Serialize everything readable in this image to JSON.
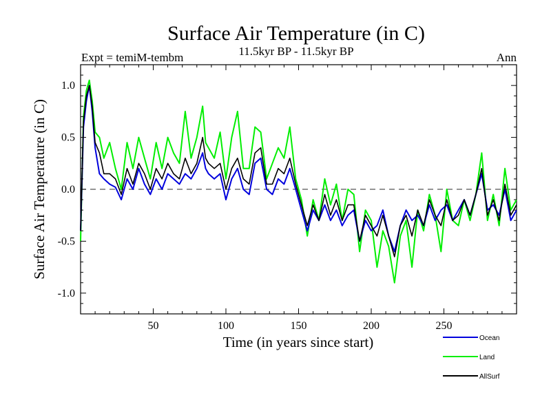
{
  "chart_data": {
    "type": "line",
    "title": "Surface Air Temperature (in C)",
    "subtitle": "11.5kyr BP - 11.5kyr BP",
    "expt_label": "Expt = temiM-tembm",
    "season_label": "Ann",
    "xlabel": "Time (in years since start)",
    "ylabel": "Surface Air Temperature (in C)",
    "xlim": [
      0,
      300
    ],
    "ylim": [
      -1.2,
      1.2
    ],
    "x_ticks": [
      50,
      100,
      150,
      200,
      250
    ],
    "y_ticks": [
      -1.0,
      -0.5,
      0.0,
      0.5,
      1.0
    ],
    "y_tick_labels": [
      "-1.0",
      "-0.5",
      "0.0",
      "0.5",
      "1.0"
    ],
    "x_tick_labels": [
      "50",
      "100",
      "150",
      "200",
      "250"
    ],
    "zero_line": true,
    "legend_placement": "bottom-right",
    "series": [
      {
        "name": "Ocean",
        "color": "#0000dd",
        "x": [
          0,
          2,
          4,
          6,
          8,
          10,
          13,
          16,
          20,
          24,
          28,
          32,
          36,
          40,
          44,
          48,
          52,
          56,
          60,
          64,
          68,
          72,
          76,
          80,
          84,
          86,
          88,
          92,
          96,
          100,
          104,
          108,
          112,
          116,
          120,
          124,
          128,
          132,
          136,
          140,
          144,
          148,
          152,
          156,
          160,
          164,
          168,
          172,
          176,
          180,
          184,
          188,
          192,
          196,
          200,
          204,
          208,
          212,
          216,
          220,
          224,
          228,
          232,
          236,
          240,
          244,
          248,
          252,
          256,
          260,
          264,
          268,
          272,
          276,
          280,
          284,
          288,
          292,
          296,
          300
        ],
        "values": [
          -0.4,
          0.6,
          0.85,
          1.0,
          0.75,
          0.4,
          0.15,
          0.1,
          0.05,
          0.02,
          -0.1,
          0.1,
          0.0,
          0.2,
          0.05,
          -0.05,
          0.1,
          0.0,
          0.15,
          0.1,
          0.05,
          0.15,
          0.1,
          0.2,
          0.35,
          0.2,
          0.15,
          0.1,
          0.15,
          -0.1,
          0.1,
          0.2,
          0.0,
          -0.05,
          0.25,
          0.3,
          0.0,
          -0.05,
          0.1,
          0.05,
          0.2,
          0.0,
          -0.2,
          -0.4,
          -0.2,
          -0.3,
          -0.15,
          -0.3,
          -0.2,
          -0.35,
          -0.25,
          -0.2,
          -0.5,
          -0.3,
          -0.4,
          -0.35,
          -0.2,
          -0.45,
          -0.6,
          -0.35,
          -0.2,
          -0.3,
          -0.25,
          -0.35,
          -0.15,
          -0.3,
          -0.2,
          -0.15,
          -0.3,
          -0.2,
          -0.1,
          -0.25,
          -0.05,
          0.15,
          -0.2,
          -0.15,
          -0.25,
          0.0,
          -0.3,
          -0.2
        ]
      },
      {
        "name": "Land",
        "color": "#00ee00",
        "x": [
          0,
          2,
          4,
          6,
          8,
          10,
          13,
          16,
          20,
          24,
          28,
          32,
          36,
          40,
          44,
          48,
          52,
          56,
          60,
          64,
          68,
          72,
          76,
          80,
          84,
          86,
          88,
          92,
          96,
          100,
          104,
          108,
          112,
          116,
          120,
          124,
          128,
          132,
          136,
          140,
          144,
          148,
          152,
          156,
          160,
          164,
          168,
          172,
          176,
          180,
          184,
          188,
          192,
          196,
          200,
          204,
          208,
          212,
          216,
          220,
          224,
          228,
          232,
          236,
          240,
          244,
          248,
          252,
          256,
          260,
          264,
          268,
          272,
          276,
          280,
          284,
          288,
          292,
          296,
          300
        ],
        "values": [
          -0.5,
          0.7,
          0.95,
          1.05,
          0.85,
          0.55,
          0.5,
          0.3,
          0.45,
          0.2,
          0.0,
          0.45,
          0.2,
          0.5,
          0.3,
          0.1,
          0.45,
          0.2,
          0.5,
          0.35,
          0.25,
          0.75,
          0.3,
          0.5,
          0.8,
          0.45,
          0.4,
          0.3,
          0.55,
          0.1,
          0.5,
          0.75,
          0.2,
          0.2,
          0.6,
          0.55,
          0.1,
          0.25,
          0.4,
          0.3,
          0.6,
          0.1,
          -0.1,
          -0.45,
          -0.1,
          -0.3,
          0.1,
          -0.15,
          0.05,
          -0.3,
          0.0,
          -0.05,
          -0.6,
          -0.2,
          -0.3,
          -0.75,
          -0.4,
          -0.55,
          -0.9,
          -0.45,
          -0.3,
          -0.75,
          -0.2,
          -0.4,
          -0.05,
          -0.25,
          -0.6,
          0.0,
          -0.3,
          -0.35,
          -0.1,
          -0.3,
          -0.05,
          0.35,
          -0.3,
          -0.05,
          -0.35,
          0.2,
          -0.2,
          -0.1
        ]
      },
      {
        "name": "AllSurf",
        "color": "#000000",
        "x": [
          0,
          2,
          4,
          6,
          8,
          10,
          13,
          16,
          20,
          24,
          28,
          32,
          36,
          40,
          44,
          48,
          52,
          56,
          60,
          64,
          68,
          72,
          76,
          80,
          84,
          86,
          88,
          92,
          96,
          100,
          104,
          108,
          112,
          116,
          120,
          124,
          128,
          132,
          136,
          140,
          144,
          148,
          152,
          156,
          160,
          164,
          168,
          172,
          176,
          180,
          184,
          188,
          192,
          196,
          200,
          204,
          208,
          212,
          216,
          220,
          224,
          228,
          232,
          236,
          240,
          244,
          248,
          252,
          256,
          260,
          264,
          268,
          272,
          276,
          280,
          284,
          288,
          292,
          296,
          300
        ],
        "values": [
          -0.4,
          0.65,
          0.9,
          1.0,
          0.8,
          0.45,
          0.35,
          0.15,
          0.15,
          0.1,
          -0.05,
          0.2,
          0.05,
          0.25,
          0.15,
          0.0,
          0.2,
          0.1,
          0.25,
          0.15,
          0.1,
          0.3,
          0.15,
          0.25,
          0.5,
          0.3,
          0.25,
          0.2,
          0.25,
          0.0,
          0.2,
          0.3,
          0.1,
          0.05,
          0.35,
          0.4,
          0.05,
          0.05,
          0.2,
          0.15,
          0.3,
          0.05,
          -0.15,
          -0.35,
          -0.15,
          -0.3,
          -0.05,
          -0.25,
          -0.1,
          -0.3,
          -0.15,
          -0.15,
          -0.5,
          -0.25,
          -0.35,
          -0.45,
          -0.25,
          -0.45,
          -0.65,
          -0.35,
          -0.25,
          -0.45,
          -0.2,
          -0.35,
          -0.1,
          -0.25,
          -0.35,
          -0.1,
          -0.3,
          -0.25,
          -0.1,
          -0.25,
          -0.05,
          0.2,
          -0.25,
          -0.1,
          -0.3,
          0.05,
          -0.25,
          -0.15
        ]
      }
    ]
  }
}
